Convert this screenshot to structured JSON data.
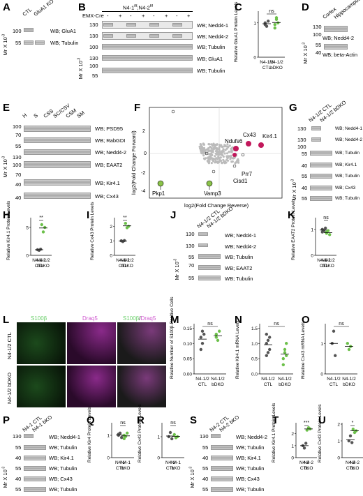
{
  "panels": {
    "A": "A",
    "B": "B",
    "C": "C",
    "D": "D",
    "E": "E",
    "F": "F",
    "G": "G",
    "H": "H",
    "I": "I",
    "J": "J",
    "K": "K",
    "L": "L",
    "M": "M",
    "N": "N",
    "O": "O",
    "P": "P",
    "Q": "Q",
    "R": "R",
    "S": "S",
    "T": "T",
    "U": "U"
  },
  "mr": "Mr X 10",
  "mr_exp": "-3",
  "A": {
    "lanes": [
      "CTL",
      "GluA1 KO"
    ],
    "blots": [
      "WB; GluA1",
      "WB; Tubulin"
    ],
    "mw": [
      "100",
      "55"
    ]
  },
  "B": {
    "genotype": "N4-1",
    "genotype2": ";N4-2",
    "cre": "EMX-Cre",
    "signs": [
      "-",
      "+",
      "-",
      "+",
      "-",
      "+",
      "-",
      "+"
    ],
    "blots": [
      "WB; Nedd4-1",
      "WB; Nedd4-2",
      "WB; Tubulin",
      "WB; GluA1",
      "WB; Tubulin"
    ],
    "mw": [
      "130",
      "130",
      "100",
      "130",
      "100",
      "55"
    ]
  },
  "C": {
    "ylabel": "Relative GluA1 Protein Levels",
    "yticks": [
      "0",
      "1"
    ],
    "sig": "ns",
    "x": [
      "N4-1/2 CTL",
      "N4-1/2 bDKO"
    ]
  },
  "D": {
    "lanes": [
      "Cortex",
      "Hippocampus"
    ],
    "blots": [
      "WB; Nedd4-2",
      "WB; beta-Actin"
    ],
    "mw": [
      "130",
      "100",
      "55",
      "40"
    ]
  },
  "E": {
    "lanes": [
      "H",
      "S",
      "CSS",
      "SC/CSV",
      "CSM",
      "SM"
    ],
    "blots": [
      "WB; PSD95",
      "WB; RabGDI",
      "WB; Nedd4-2",
      "WB; EAAT2",
      "WB; Kir4.1",
      "WB; Cx43"
    ],
    "mw": [
      "100",
      "70",
      "55",
      "130",
      "100",
      "70",
      "40",
      "40"
    ]
  },
  "F": {
    "ylabel": "log2(Fold Change Forward)",
    "xlabel": "log2(Fold Change Reverse)",
    "xticks": [
      "-4",
      "-2",
      "0",
      "2"
    ],
    "yticks": [
      "-4",
      "-2",
      "0",
      "2"
    ],
    "labels": [
      "Cx43",
      "Kir4.1",
      "Ndufs6",
      "Cisd1",
      "Prr7",
      "Pkp1",
      "Vamp3"
    ]
  },
  "G": {
    "lanes": [
      "N4-1/2 CTL",
      "N4-1/2 bDKO"
    ],
    "blots": [
      "WB; Nedd4-1",
      "WB; Nedd4-2",
      "WB; Tubulin",
      "WB; Kir4.1",
      "WB; Tubulin",
      "WB; Cx43",
      "WB; Tubulin"
    ],
    "mw": [
      "130",
      "130",
      "100",
      "55",
      "40",
      "55",
      "40",
      "55"
    ]
  },
  "H": {
    "ylabel": "Relative Kir4.1 Protein Levels",
    "yticks": [
      "0",
      "5"
    ],
    "sig": "**",
    "x": [
      "N4-1/2 CTL",
      "N4-1/2 bDKO"
    ]
  },
  "I": {
    "ylabel": "Relative Cx43 Protein Levels",
    "yticks": [
      "0",
      "1",
      "2"
    ],
    "sig": "**",
    "x": [
      "N4-1/2 CTL",
      "N4-1/2 bDKO"
    ]
  },
  "J": {
    "lanes": [
      "N4-1/2 CTL",
      "N4-1/2 bDKO"
    ],
    "blots": [
      "WB; Nedd4-1",
      "WB; Nedd4-2",
      "WB; Tubulin",
      "WB; EAAT2",
      "WB; Tubulin"
    ],
    "mw": [
      "130",
      "130",
      "55",
      "70",
      "55"
    ]
  },
  "K": {
    "ylabel": "Relative EAAT2 Protein Levels",
    "yticks": [
      "0",
      "1"
    ],
    "sig": "ns",
    "x": [
      "N4-1/2 CTL",
      "N4-1/2 bDKO"
    ]
  },
  "L": {
    "titles": [
      "S100β",
      "Draq5",
      "S100β",
      "/",
      "Draq5"
    ],
    "rows": [
      "N4-1/2 CTL",
      "N4-1/2 bDKO"
    ]
  },
  "M": {
    "ylabel": "Relative Number of S100β-Positive Cells",
    "yticks": [
      "0.00",
      "0.05",
      "0.10",
      "0.15"
    ],
    "sig": "ns",
    "x": [
      "N4-1/2 CTL",
      "N4-1/2 bDKO"
    ]
  },
  "N": {
    "ylabel": "Relative Kir4.1 mRNA Levels",
    "yticks": [
      "0.0",
      "0.5",
      "1.0",
      "1.5"
    ],
    "sig": "ns",
    "x": [
      "N4-1/2 CTL",
      "N4-1/2 bDKO"
    ]
  },
  "O": {
    "ylabel": "Relative Cx43 mRNA Levels",
    "yticks": [
      "0",
      "1"
    ],
    "sig": "ns",
    "x": [
      "N4-1/2 CTL",
      "N4-1/2 bDKO"
    ]
  },
  "P": {
    "lanes": [
      "N4-1 CTL",
      "N4-1 bKO"
    ],
    "blots": [
      "WB; Nedd4-1",
      "WB; Tubulin",
      "WB; Kir4.1",
      "WB; Tubulin",
      "WB; Cx43",
      "WB; Tubulin"
    ],
    "mw": [
      "130",
      "55",
      "40",
      "55",
      "40",
      "55"
    ]
  },
  "Q": {
    "ylabel": "Relative Kir4 Protein Levels",
    "yticks": [
      "0",
      "1"
    ],
    "sig": "ns",
    "x": [
      "N4-1 CTL",
      "N4-1 bKO"
    ]
  },
  "R": {
    "ylabel": "Relative Cx43 Protein Levels",
    "yticks": [
      "0",
      "1"
    ],
    "sig": "ns",
    "x": [
      "N4-1 CTL",
      "N4-1 bKO"
    ]
  },
  "S": {
    "lanes": [
      "N4-2 CTL",
      "N4-2 bKO"
    ],
    "blots": [
      "WB; Nedd4-2",
      "WB; Tubulin",
      "WB; Kir4.1",
      "WB; Tubulin",
      "WB; Cx43",
      "WB; Tubulin"
    ],
    "mw": [
      "130",
      "55",
      "40",
      "55",
      "40",
      "55"
    ]
  },
  "T": {
    "ylabel": "Relative Kir4.1 Protein Levels",
    "yticks": [
      "0",
      "1",
      "2"
    ],
    "sig": "***",
    "x": [
      "N4-2 CTL",
      "N4-2 bKO"
    ]
  },
  "U": {
    "ylabel": "Relative Cx43 Protein Levels",
    "yticks": [
      "0",
      "1",
      "2"
    ],
    "sig": "*",
    "x": [
      "N4-2 CTL",
      "N4-2 bKO"
    ]
  },
  "chart_data": [
    {
      "panel": "C",
      "type": "scatter",
      "series": [
        {
          "values": [
            1.0,
            0.9,
            1.05,
            0.95
          ]
        },
        {
          "values": [
            0.95,
            1.1,
            1.0,
            0.85,
            1.15
          ]
        }
      ],
      "ylim": [
        0,
        1.3
      ]
    },
    {
      "panel": "H",
      "type": "scatter",
      "series": [
        {
          "values": [
            1.0,
            0.9,
            1.1
          ]
        },
        {
          "values": [
            5.5,
            4.2,
            5.0
          ]
        }
      ],
      "ylim": [
        0,
        6.5
      ]
    },
    {
      "panel": "I",
      "type": "scatter",
      "series": [
        {
          "values": [
            1.0,
            0.95,
            1.02
          ]
        },
        {
          "values": [
            2.2,
            1.9,
            2.0
          ]
        }
      ],
      "ylim": [
        0,
        2.5
      ]
    },
    {
      "panel": "K",
      "type": "scatter",
      "series": [
        {
          "values": [
            1.0,
            0.95,
            1.05,
            0.9
          ]
        },
        {
          "values": [
            0.85,
            0.95,
            0.8,
            0.9
          ]
        }
      ],
      "ylim": [
        0,
        1.4
      ]
    },
    {
      "panel": "M",
      "type": "scatter",
      "series": [
        {
          "values": [
            0.12,
            0.1,
            0.13,
            0.08,
            0.14
          ]
        },
        {
          "values": [
            0.13,
            0.11,
            0.14,
            0.12
          ]
        }
      ],
      "ylim": [
        0,
        0.16
      ]
    },
    {
      "panel": "N",
      "type": "scatter",
      "series": [
        {
          "values": [
            1.0,
            1.1,
            0.8,
            1.3,
            0.7,
            1.2,
            0.6
          ]
        },
        {
          "values": [
            0.5,
            0.8,
            1.0,
            0.3,
            0.7,
            0.6
          ]
        }
      ],
      "ylim": [
        0,
        1.6
      ]
    },
    {
      "panel": "O",
      "type": "scatter",
      "series": [
        {
          "values": [
            1.0,
            1.4,
            0.6
          ]
        },
        {
          "values": [
            1.0,
            0.8,
            0.9
          ]
        }
      ],
      "ylim": [
        0,
        1.6
      ]
    },
    {
      "panel": "Q",
      "type": "scatter",
      "series": [
        {
          "values": [
            1.0,
            1.1,
            0.9,
            1.05
          ]
        },
        {
          "values": [
            1.0,
            0.95,
            1.1,
            0.85
          ]
        }
      ],
      "ylim": [
        0,
        1.5
      ]
    },
    {
      "panel": "R",
      "type": "scatter",
      "series": [
        {
          "values": [
            1.0,
            1.2,
            0.9
          ]
        },
        {
          "values": [
            1.1,
            0.95,
            1.0
          ]
        }
      ],
      "ylim": [
        0,
        1.6
      ]
    },
    {
      "panel": "T",
      "type": "scatter",
      "series": [
        {
          "values": [
            1.0,
            0.8,
            1.2
          ]
        },
        {
          "values": [
            2.3,
            2.5,
            2.4
          ]
        }
      ],
      "ylim": [
        0,
        2.8
      ]
    },
    {
      "panel": "U",
      "type": "scatter",
      "series": [
        {
          "values": [
            1.0,
            1.3,
            0.9
          ]
        },
        {
          "values": [
            1.7,
            1.5,
            1.6
          ]
        }
      ],
      "ylim": [
        0,
        2.0
      ]
    }
  ]
}
